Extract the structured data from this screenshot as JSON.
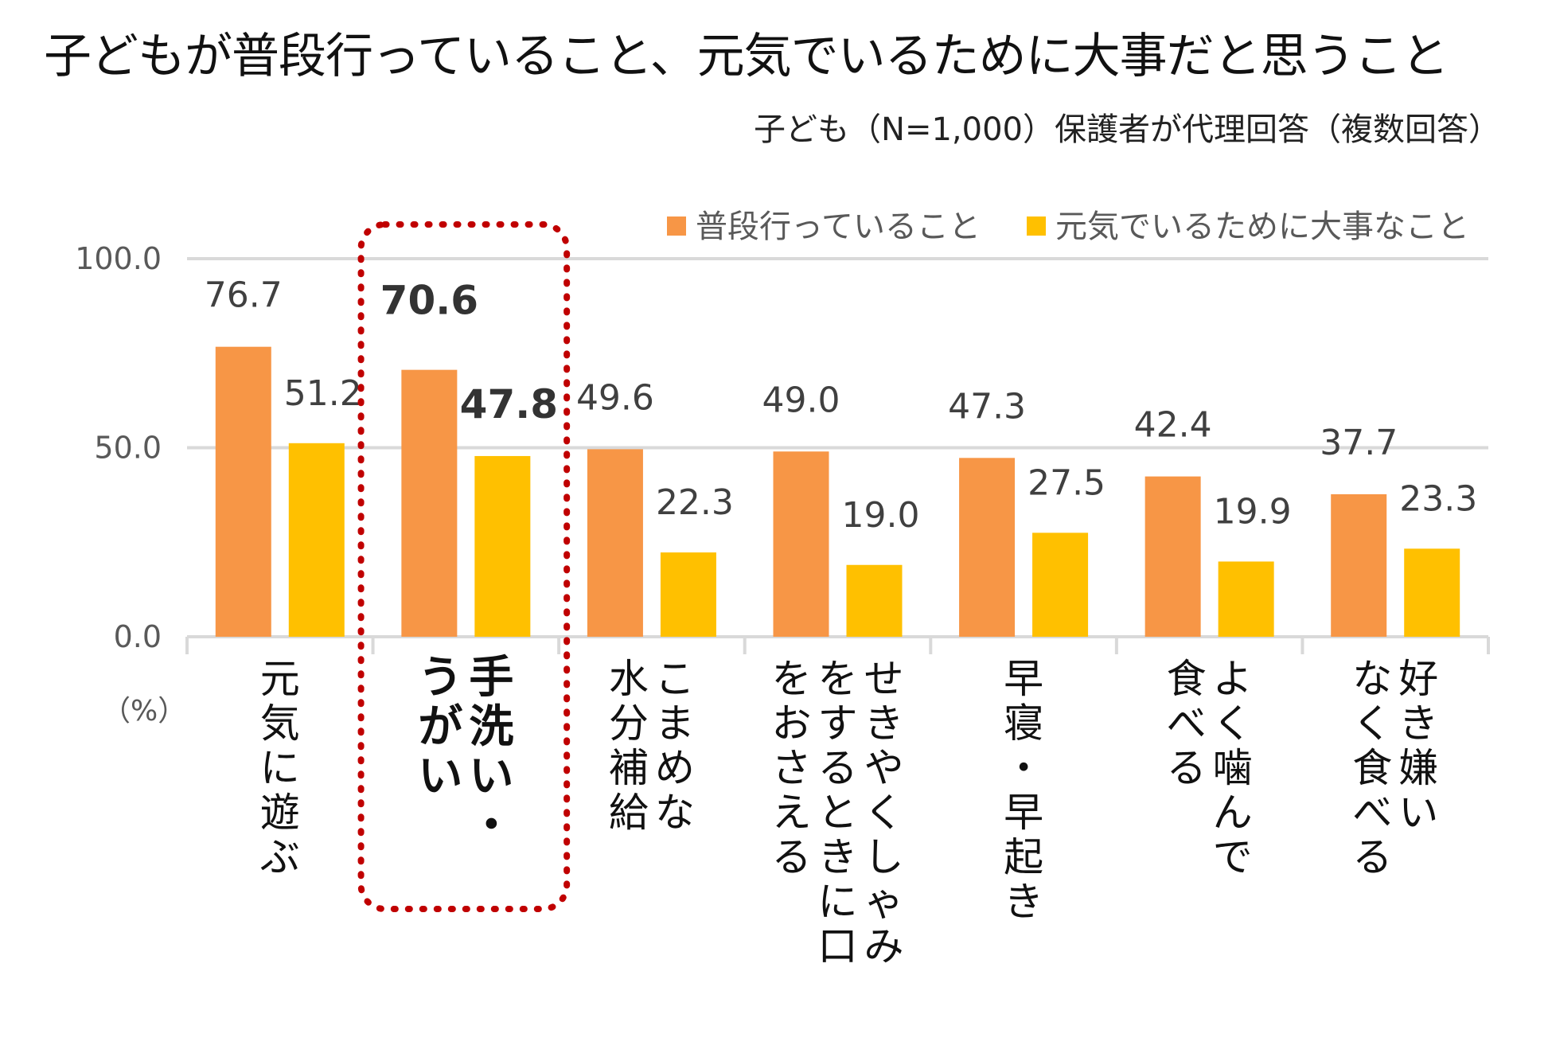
{
  "title": "子どもが普段行っていること、元気でいるために大事だと思うこと",
  "subtitle": "子ども（N=1,000）保護者が代理回答（複数回答）",
  "unit_label": "（%）",
  "highlight_index": 1,
  "colors": {
    "series1": "#F79646",
    "series2": "#FFC000",
    "highlight": "#C00000",
    "grid": "#D9D9D9"
  },
  "chart_data": {
    "type": "bar",
    "categories": [
      "元気に遊ぶ",
      "手洗い・うがい",
      "こまめな水分補給",
      "せきやくしゃみをするときに口をおさえる",
      "早寝・早起き",
      "よく噛んで食べる",
      "好き嫌いなく食べる"
    ],
    "category_columns": [
      [
        "元気に遊ぶ"
      ],
      [
        "手洗い・",
        "うがい"
      ],
      [
        "こまめな",
        "水分補給"
      ],
      [
        "せきやくしゃみ",
        "をするときに口",
        "をおさえる"
      ],
      [
        "早寝・早起き"
      ],
      [
        "よく噛んで",
        "食べる"
      ],
      [
        "好き嫌い",
        "なく食べる"
      ]
    ],
    "series": [
      {
        "name": "普段行っていること",
        "values": [
          76.7,
          70.6,
          49.6,
          49.0,
          47.3,
          42.4,
          37.7
        ]
      },
      {
        "name": "元気でいるために大事なこと",
        "values": [
          51.2,
          47.8,
          22.3,
          19.0,
          27.5,
          19.9,
          23.3
        ]
      }
    ],
    "value_labels": [
      [
        "76.7",
        "70.6",
        "49.6",
        "49.0",
        "47.3",
        "42.4",
        "37.7"
      ],
      [
        "51.2",
        "47.8",
        "22.3",
        "19.0",
        "27.5",
        "19.9",
        "23.3"
      ]
    ],
    "yticks": [
      "0.0",
      "50.0",
      "100.0"
    ],
    "ylim": [
      0,
      100
    ],
    "grid": true,
    "legend_position": "top-right"
  }
}
